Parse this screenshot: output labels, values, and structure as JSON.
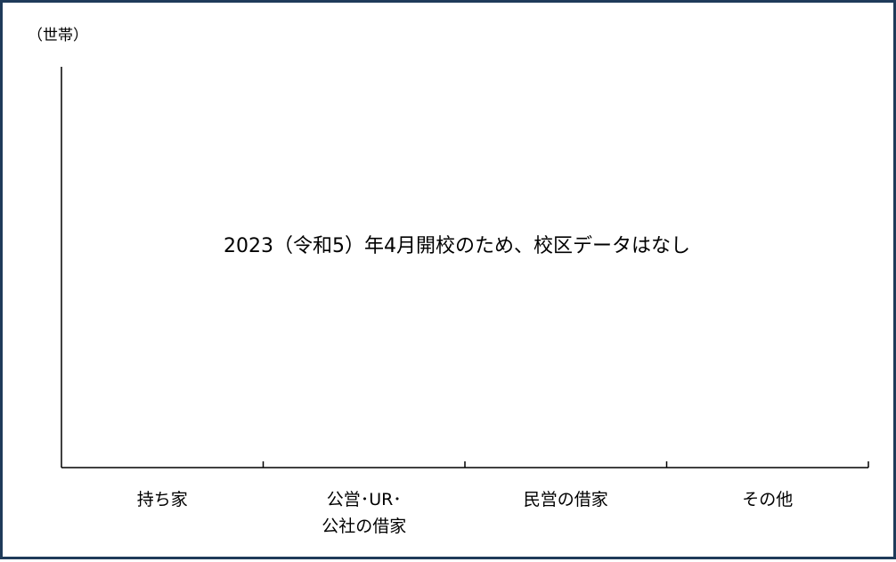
{
  "chart_data": {
    "type": "bar",
    "title": "",
    "xlabel": "",
    "ylabel": "（世帯）",
    "categories": [
      [
        "持ち家"
      ],
      [
        "公営･UR･",
        "公社の借家"
      ],
      [
        "民営の借家"
      ],
      [
        "その他"
      ]
    ],
    "series": [],
    "annotation": "2023（令和5）年4月開校のため、校区データはなし",
    "grid": false,
    "legend": "none"
  }
}
